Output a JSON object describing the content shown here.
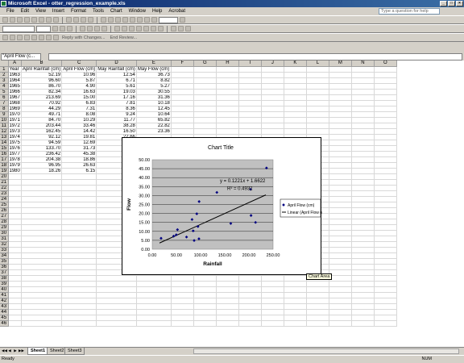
{
  "window": {
    "title": "Microsoft Excel - otter_regression_example.xls"
  },
  "menu": [
    "File",
    "Edit",
    "View",
    "Insert",
    "Format",
    "Tools",
    "Chart",
    "Window",
    "Help",
    "Acrobat"
  ],
  "help_placeholder": "Type a question for help",
  "toolbar": {
    "zoom": "",
    "reply_label": "Reply with Changes...",
    "end_review": "End Review..."
  },
  "formula_bar": {
    "name_box": "\"April Flow (c..."
  },
  "columns": [
    "A",
    "B",
    "C",
    "D",
    "E",
    "F",
    "G",
    "H",
    "I",
    "J",
    "K",
    "L",
    "M",
    "N",
    "O"
  ],
  "header_row": [
    "Year",
    "April Rainfall (cm)",
    "April Flow (cm)",
    "May Rainfall (cm)",
    "May Flow (cm)"
  ],
  "rows": [
    [
      "1963",
      "52.19",
      "10.96",
      "12.54",
      "36.73"
    ],
    [
      "1964",
      "96.60",
      "5.87",
      "6.71",
      "8.82"
    ],
    [
      "1965",
      "86.70",
      "4.90",
      "5.61",
      "5.27"
    ],
    [
      "1966",
      "82.34",
      "16.63",
      "19.03",
      "30.55"
    ],
    [
      "1967",
      "213.69",
      "15.00",
      "17.16",
      "31.36"
    ],
    [
      "1968",
      "70.92",
      "6.83",
      "7.81",
      "10.18"
    ],
    [
      "1969",
      "44.29",
      "7.31",
      "8.36",
      "12.45"
    ],
    [
      "1970",
      "49.71",
      "8.08",
      "9.24",
      "10.64"
    ],
    [
      "1971",
      "84.70",
      "10.29",
      "11.77",
      "65.82"
    ],
    [
      "1972",
      "203.44",
      "33.46",
      "38.28",
      "22.82"
    ],
    [
      "1973",
      "162.45",
      "14.42",
      "16.50",
      "23.36"
    ],
    [
      "1974",
      "92.12",
      "19.81",
      "22.66",
      ""
    ],
    [
      "1975",
      "94.59",
      "12.69",
      "14.52",
      ""
    ],
    [
      "1976",
      "133.70",
      "31.73",
      "36.30",
      ""
    ],
    [
      "1977",
      "236.42",
      "45.38",
      "51.92",
      ""
    ],
    [
      "1978",
      "204.38",
      "18.86",
      "21.58",
      ""
    ],
    [
      "1979",
      "96.95",
      "26.63",
      "30.47",
      ""
    ],
    [
      "1980",
      "18.26",
      "6.15",
      "7.04",
      ""
    ]
  ],
  "chart": {
    "title": "Chart Title",
    "xlabel": "Rainfall",
    "ylabel": "Flow",
    "equation": "y = 0.1221x + 1.6622",
    "r2": "R² = 0.4932",
    "legend_series": "April Flow (cm)",
    "legend_trend": "Linear (April Flow (cm))",
    "tooltip": "Chart Area"
  },
  "chart_data": {
    "type": "scatter",
    "title": "Chart Title",
    "xlabel": "Rainfall",
    "ylabel": "Flow",
    "xlim": [
      0,
      250
    ],
    "ylim": [
      0,
      50
    ],
    "x_ticks": [
      "0.00",
      "50.00",
      "100.00",
      "150.00",
      "200.00",
      "250.00"
    ],
    "y_ticks": [
      "0.00",
      "5.00",
      "10.00",
      "15.00",
      "20.00",
      "25.00",
      "30.00",
      "35.00",
      "40.00",
      "45.00",
      "50.00"
    ],
    "series": [
      {
        "name": "April Flow (cm)",
        "x": [
          52.19,
          96.6,
          86.7,
          82.34,
          213.69,
          70.92,
          44.29,
          49.71,
          84.7,
          203.44,
          162.45,
          92.12,
          94.59,
          133.7,
          236.42,
          204.38,
          96.95,
          18.26
        ],
        "y": [
          10.96,
          5.87,
          4.9,
          16.63,
          15.0,
          6.83,
          7.31,
          8.08,
          10.29,
          33.46,
          14.42,
          19.81,
          12.69,
          31.73,
          45.38,
          18.86,
          26.63,
          6.15
        ]
      }
    ],
    "trendline": {
      "name": "Linear (April Flow (cm))",
      "slope": 0.1221,
      "intercept": 1.6622,
      "equation": "y = 0.1221x + 1.6622",
      "r2": "R² = 0.4932"
    },
    "grid": true,
    "legend_position": "right"
  },
  "sheet_tabs": [
    "Sheet1",
    "Sheet2",
    "Sheet3"
  ],
  "status": {
    "left": "Ready",
    "right": "NUM"
  },
  "colors": {
    "plot_bg": "#c0c0c0",
    "marker": "#000080",
    "trend": "#000000",
    "title_bar": "#0a246a"
  }
}
